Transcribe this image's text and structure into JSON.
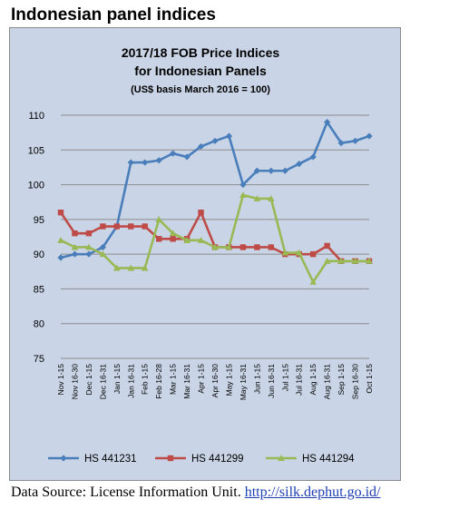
{
  "page": {
    "heading": "Indonesian panel indices",
    "source_text": "Data Source: License Information Unit.",
    "source_url": "http://silk.dephut.go.id/"
  },
  "colors": {
    "plot_background": "#c9d5e6",
    "grid": "#8c8c8c",
    "hs441231": "#4a7ebb",
    "hs441299": "#be4b48",
    "hs441294": "#98b954"
  },
  "chart_data": {
    "type": "line",
    "title": "2017/18 FOB Price Indices",
    "subtitle": "for Indonesian Panels",
    "note": "(US$ basis March 2016 = 100)",
    "xlabel": "",
    "ylabel": "",
    "ylim": [
      75,
      110
    ],
    "yticks": [
      75,
      80,
      85,
      90,
      95,
      100,
      105,
      110
    ],
    "grid": true,
    "legend_position": "bottom",
    "categories": [
      "Nov 1-15",
      "Nov 16-30",
      "Dec 1-15",
      "Dec 16-31",
      "Jan 1-15",
      "Jan 16-31",
      "Feb 1-15",
      "Feb 16-28",
      "Mar 1-15",
      "Mar 16-31",
      "Apr 1-15",
      "Apr 16-30",
      "May 1-15",
      "May 16-31",
      "Jun 1-15",
      "Jun 16-31",
      "Jul 1-15",
      "Jul 16-31",
      "Aug 1-15",
      "Aug 16-31",
      "Sep 1-15",
      "Sep 16-30",
      "Oct 1-15"
    ],
    "series": [
      {
        "name": "HS 441231",
        "marker": "diamond",
        "values": [
          89.5,
          90,
          90,
          91,
          94,
          103.2,
          103.2,
          103.5,
          104.5,
          104,
          105.5,
          106.3,
          107,
          100,
          102,
          102,
          102,
          103,
          104,
          109,
          106,
          106.3,
          107
        ]
      },
      {
        "name": "HS 441299",
        "marker": "square",
        "values": [
          96,
          93,
          93,
          94,
          94,
          94,
          94,
          92.2,
          92.2,
          92.2,
          96,
          91,
          91,
          91,
          91,
          91,
          90,
          90,
          90,
          91.2,
          89,
          89,
          89
        ]
      },
      {
        "name": "HS 441294",
        "marker": "triangle",
        "values": [
          92,
          91,
          91,
          90,
          88,
          88,
          88,
          95,
          93,
          92,
          92,
          91,
          91,
          98.5,
          98,
          98,
          90.2,
          90.2,
          86,
          89,
          89,
          89,
          89
        ]
      }
    ]
  }
}
